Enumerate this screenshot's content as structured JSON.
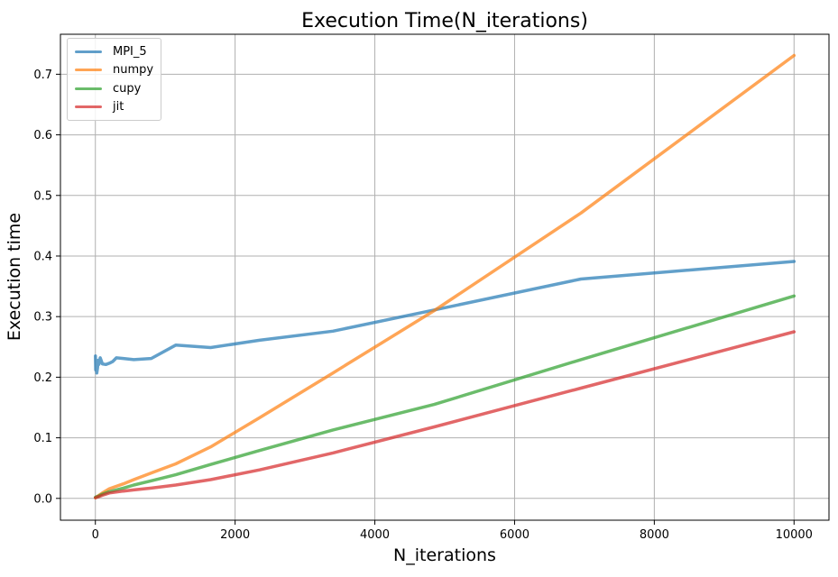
{
  "chart_data": {
    "type": "line",
    "title": "Execution Time(N_iterations)",
    "xlabel": "N_iterations",
    "ylabel": "Execution time",
    "xlim": [
      -500,
      10500
    ],
    "ylim": [
      -0.036,
      0.766
    ],
    "xticks": [
      0,
      2000,
      4000,
      6000,
      8000,
      10000
    ],
    "yticks": [
      0.0,
      0.1,
      0.2,
      0.3,
      0.4,
      0.5,
      0.6,
      0.7
    ],
    "xtick_labels": [
      "0",
      "2000",
      "4000",
      "6000",
      "8000",
      "10000"
    ],
    "ytick_labels": [
      "0.0",
      "0.1",
      "0.2",
      "0.3",
      "0.4",
      "0.5",
      "0.6",
      "0.7"
    ],
    "grid": true,
    "legend_position": "top-left",
    "series": [
      {
        "name": "MPI_5",
        "color": "#1f77b4",
        "x": [
          1,
          5,
          10,
          15,
          20,
          30,
          40,
          50,
          70,
          100,
          150,
          200,
          250,
          300,
          400,
          550,
          800,
          1150,
          1650,
          2350,
          3400,
          4850,
          6950,
          10000
        ],
        "y": [
          0.235,
          0.212,
          0.22,
          0.226,
          0.207,
          0.215,
          0.228,
          0.221,
          0.232,
          0.222,
          0.221,
          0.223,
          0.226,
          0.232,
          0.231,
          0.229,
          0.231,
          0.253,
          0.249,
          0.261,
          0.276,
          0.311,
          0.362,
          0.391
        ]
      },
      {
        "name": "numpy",
        "color": "#ff7f0e",
        "x": [
          1,
          50,
          100,
          200,
          400,
          550,
          800,
          1150,
          1650,
          2350,
          3400,
          4850,
          6950,
          10000
        ],
        "y": [
          0.001,
          0.005,
          0.009,
          0.016,
          0.024,
          0.031,
          0.042,
          0.057,
          0.085,
          0.133,
          0.207,
          0.31,
          0.471,
          0.731
        ]
      },
      {
        "name": "cupy",
        "color": "#2ca02c",
        "x": [
          1,
          50,
          100,
          200,
          400,
          550,
          800,
          1150,
          1650,
          2350,
          3400,
          4850,
          6950,
          10000
        ],
        "y": [
          0.002,
          0.004,
          0.007,
          0.011,
          0.017,
          0.022,
          0.029,
          0.039,
          0.056,
          0.079,
          0.113,
          0.155,
          0.229,
          0.334
        ]
      },
      {
        "name": "jit",
        "color": "#d62728",
        "x": [
          1,
          50,
          100,
          200,
          400,
          550,
          800,
          1150,
          1650,
          2350,
          3400,
          4850,
          6950,
          10000
        ],
        "y": [
          0.001,
          0.003,
          0.005,
          0.009,
          0.012,
          0.014,
          0.017,
          0.022,
          0.031,
          0.047,
          0.075,
          0.118,
          0.182,
          0.275
        ]
      }
    ]
  }
}
